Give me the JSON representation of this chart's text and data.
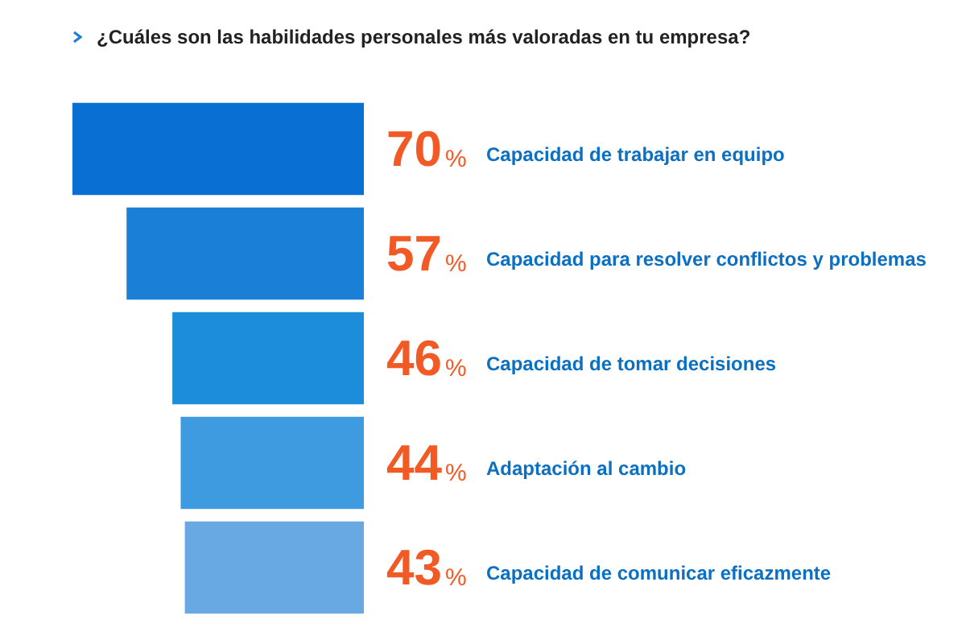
{
  "chart_data": {
    "type": "bar",
    "orientation": "horizontal",
    "title": "¿Cuáles son las habilidades personales más valoradas en tu empresa?",
    "categories": [
      "Capacidad de trabajar en equipo",
      "Capacidad para resolver conflictos y problemas",
      "Capacidad de tomar decisiones",
      "Adaptación al cambio",
      "Capacidad de comunicar eficazmente"
    ],
    "values": [
      70,
      57,
      46,
      44,
      43
    ],
    "colors": [
      "#0a6fd3",
      "#1a7fd6",
      "#1b8ddb",
      "#3e9be0",
      "#68a9e3"
    ],
    "value_labels": [
      "70%",
      "57%",
      "46%",
      "44%",
      "43%"
    ],
    "xlim": [
      70,
      0
    ],
    "tick_labels": false
  }
}
